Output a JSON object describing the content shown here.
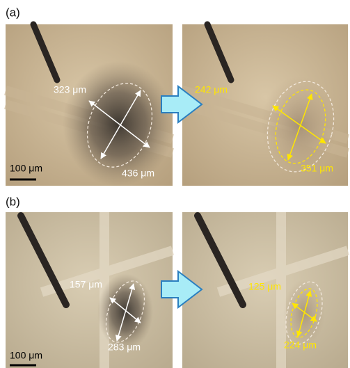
{
  "panels": [
    {
      "label": "(a)",
      "before": {
        "scale_bar": "100 μm",
        "minor_axis": "323 μm",
        "major_axis": "436 μm"
      },
      "after": {
        "minor_axis": "242 μm",
        "major_axis": "351 μm"
      }
    },
    {
      "label": "(b)",
      "before": {
        "scale_bar": "100 μm",
        "minor_axis": "157 μm",
        "major_axis": "283 μm"
      },
      "after": {
        "minor_axis": "125 μm",
        "major_axis": "224 μm"
      }
    }
  ]
}
